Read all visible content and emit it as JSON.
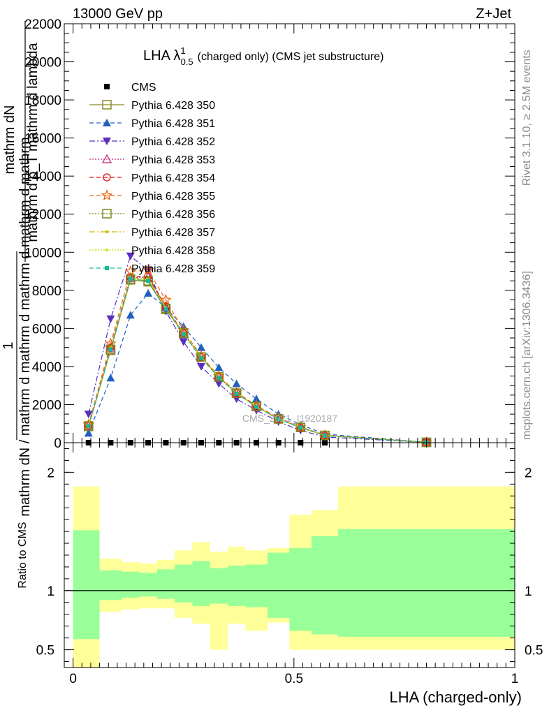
{
  "header": {
    "left": "13000 GeV pp",
    "right": "Z+Jet"
  },
  "side_text": {
    "rivet": "Rivet 3.1.10, ≥ 2.5M events",
    "mcplots": "mcplots.cern.ch [arXiv:1306.3436]"
  },
  "watermark": "CMS_2021_I1920187",
  "chart_data": [
    {
      "type": "line",
      "title_main": "LHA λ",
      "title_sup": "1",
      "title_sub": "0.5",
      "title_rest": "(charged only) (CMS jet substructure)",
      "ylabel_num": "mathrm dN",
      "ylabel_den": "mathrm d p_T mathrm d lambda",
      "ylabel_num2": "1",
      "ylabel_den2": "mathrm dN / mathrm d mathrm d mathrm d mathrm d mathrm",
      "ylim": [
        0,
        22000
      ],
      "yticks": [
        0,
        2000,
        4000,
        6000,
        8000,
        10000,
        12000,
        14000,
        16000,
        18000,
        20000,
        22000
      ],
      "xlim": [
        -0.02,
        1.0
      ],
      "x": [
        0.035,
        0.085,
        0.13,
        0.17,
        0.21,
        0.25,
        0.29,
        0.33,
        0.37,
        0.415,
        0.465,
        0.515,
        0.57,
        0.8
      ],
      "legend_position": "top-left",
      "series": [
        {
          "name": "CMS",
          "color": "#000000",
          "marker": "square-filled",
          "dash": "none",
          "values": [
            0,
            0,
            0,
            0,
            0,
            0,
            0,
            0,
            0,
            0,
            0,
            0,
            0,
            0
          ]
        },
        {
          "name": "Pythia 6.428 350",
          "color": "#8b8b22",
          "marker": "square-open",
          "dash": "solid",
          "values": [
            850,
            4850,
            8550,
            8450,
            7000,
            5750,
            4500,
            3450,
            2600,
            1900,
            1250,
            800,
            380,
            20
          ]
        },
        {
          "name": "Pythia 6.428 351",
          "color": "#1f5fbf",
          "marker": "triangle-up",
          "dash": "6,4",
          "values": [
            500,
            3400,
            6700,
            7850,
            7100,
            6100,
            5000,
            3950,
            3100,
            2300,
            1500,
            950,
            450,
            25
          ]
        },
        {
          "name": "Pythia 6.428 352",
          "color": "#5a2fbf",
          "marker": "triangle-down",
          "dash": "8,3,2,3",
          "values": [
            1500,
            6500,
            9800,
            9050,
            6900,
            5300,
            4000,
            3100,
            2300,
            1700,
            1100,
            650,
            300,
            15
          ]
        },
        {
          "name": "Pythia 6.428 353",
          "color": "#c0287a",
          "marker": "triangle-open",
          "dash": "2,2",
          "values": [
            900,
            4950,
            8650,
            8700,
            7100,
            5700,
            4500,
            3450,
            2600,
            1900,
            1250,
            800,
            380,
            20
          ]
        },
        {
          "name": "Pythia 6.428 354",
          "color": "#dd1111",
          "marker": "circle-open",
          "dash": "6,4",
          "values": [
            900,
            5000,
            8700,
            8750,
            7150,
            5750,
            4500,
            3450,
            2600,
            1900,
            1250,
            800,
            380,
            20
          ]
        },
        {
          "name": "Pythia 6.428 355",
          "color": "#ee6611",
          "marker": "star",
          "dash": "6,4",
          "values": [
            950,
            5200,
            9000,
            9050,
            7500,
            5900,
            4550,
            3500,
            2650,
            1950,
            1300,
            820,
            400,
            20
          ]
        },
        {
          "name": "Pythia 6.428 356",
          "color": "#7a8a1a",
          "marker": "square-open",
          "dash": "2,2",
          "values": [
            880,
            4900,
            8600,
            8500,
            7050,
            5750,
            4500,
            3450,
            2600,
            1900,
            1250,
            800,
            380,
            20
          ]
        },
        {
          "name": "Pythia 6.428 357",
          "color": "#d4b400",
          "marker": "dot",
          "dash": "8,3,2,3",
          "values": [
            880,
            4950,
            8650,
            8600,
            7100,
            5750,
            4500,
            3450,
            2600,
            1900,
            1250,
            800,
            380,
            20
          ]
        },
        {
          "name": "Pythia 6.428 358",
          "color": "#c8dc00",
          "marker": "dot",
          "dash": "2,2",
          "values": [
            880,
            4900,
            8600,
            8550,
            7050,
            5750,
            4500,
            3450,
            2600,
            1900,
            1250,
            800,
            380,
            20
          ]
        },
        {
          "name": "Pythia 6.428 359",
          "color": "#11bb99",
          "marker": "square-small",
          "dash": "6,4",
          "values": [
            870,
            4900,
            8600,
            8500,
            7000,
            5700,
            4450,
            3400,
            2580,
            1880,
            1240,
            790,
            370,
            20
          ]
        }
      ]
    },
    {
      "type": "area",
      "ylabel": "Ratio to CMS",
      "xlabel": "LHA (charged-only)",
      "xlim": [
        -0.02,
        1.0
      ],
      "ylim": [
        0.35,
        2.25
      ],
      "xticks": [
        0,
        0.5,
        1
      ],
      "yticks": [
        0.5,
        1,
        2
      ],
      "reference_line": 1,
      "bins": [
        0,
        0.06,
        0.11,
        0.15,
        0.19,
        0.23,
        0.27,
        0.31,
        0.35,
        0.39,
        0.44,
        0.49,
        0.54,
        0.6,
        1.0
      ],
      "band_outer": {
        "color": "#ffff99",
        "lo": [
          0.35,
          0.82,
          0.84,
          0.85,
          0.85,
          0.77,
          0.72,
          0.5,
          0.72,
          0.66,
          0.73,
          0.5,
          0.5,
          0.5
        ],
        "hi": [
          1.88,
          1.27,
          1.24,
          1.23,
          1.26,
          1.34,
          1.41,
          1.33,
          1.37,
          1.34,
          1.36,
          1.64,
          1.68,
          1.88
        ]
      },
      "band_inner": {
        "color": "#99ff99",
        "lo": [
          0.59,
          0.92,
          0.94,
          0.95,
          0.93,
          0.9,
          0.87,
          0.89,
          0.87,
          0.86,
          0.77,
          0.66,
          0.63,
          0.61
        ],
        "hi": [
          1.51,
          1.17,
          1.16,
          1.15,
          1.18,
          1.22,
          1.25,
          1.19,
          1.21,
          1.22,
          1.32,
          1.36,
          1.46,
          1.52
        ]
      }
    }
  ]
}
